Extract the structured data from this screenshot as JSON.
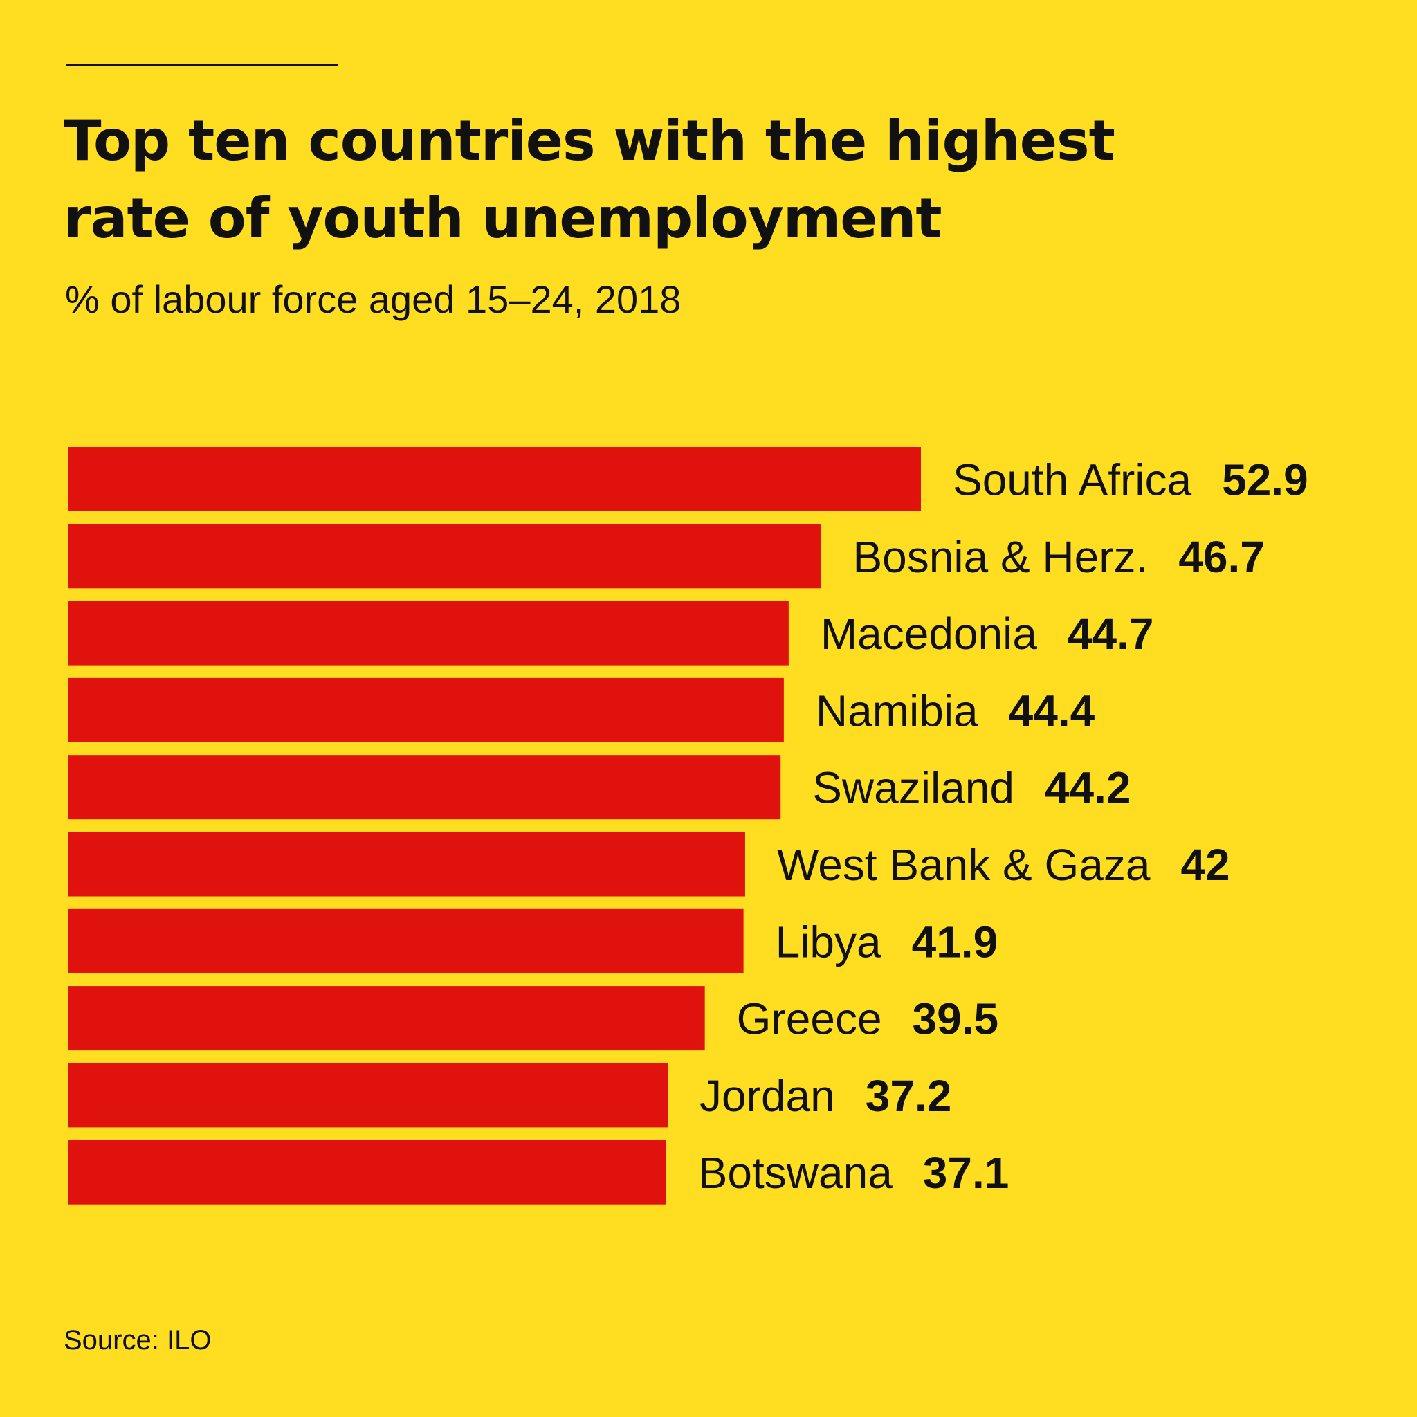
{
  "chart_data": {
    "type": "bar",
    "orientation": "horizontal",
    "title": "Top ten countries with the highest rate of youth unemployment",
    "subtitle": "% of labour force aged 15–24, 2018",
    "source": "Source: ILO",
    "categories": [
      "South Africa",
      "Bosnia & Herz.",
      "Macedonia",
      "Namibia",
      "Swaziland",
      "West Bank & Gaza",
      "Libya",
      "Greece",
      "Jordan",
      "Botswana"
    ],
    "values": [
      52.9,
      46.7,
      44.7,
      44.4,
      44.2,
      42,
      41.9,
      39.5,
      37.2,
      37.1
    ],
    "value_labels": [
      "52.9",
      "46.7",
      "44.7",
      "44.4",
      "44.2",
      "42",
      "41.9",
      "39.5",
      "37.2",
      "37.1"
    ],
    "xlim": [
      0,
      52.9
    ],
    "xlabel": "",
    "ylabel": "",
    "grid": false,
    "legend": "none"
  },
  "colors": {
    "background": "#FFDE21",
    "bar": "#E0120E",
    "text": "#111111"
  }
}
